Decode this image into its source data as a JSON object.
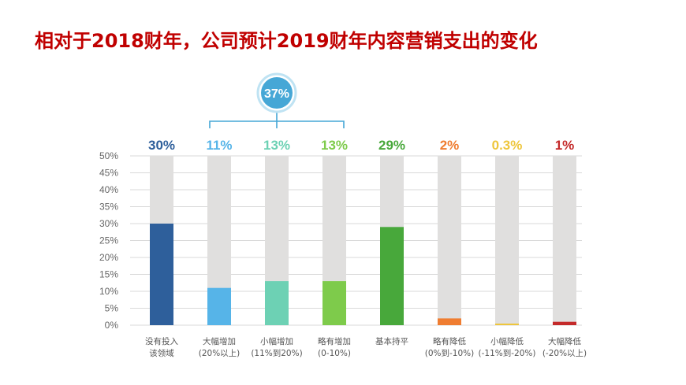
{
  "title": "相对于2018财年，公司预计2019财年内容营销支出的变化",
  "chart_data": {
    "type": "bar",
    "categories": [
      [
        "没有投入",
        "该领域"
      ],
      [
        "大幅增加",
        "(20%以上)"
      ],
      [
        "小幅增加",
        "(11%到20%)"
      ],
      [
        "略有增加",
        "(0-10%)"
      ],
      [
        "基本持平"
      ],
      [
        "略有降低",
        "(0%到-10%)"
      ],
      [
        "小幅降低",
        "(-11%到-20%)"
      ],
      [
        "大幅降低",
        "(-20%以上)"
      ]
    ],
    "values": [
      30,
      11,
      13,
      13,
      29,
      2,
      0.3,
      1
    ],
    "value_labels": [
      "30%",
      "11%",
      "13%",
      "13%",
      "29%",
      "2%",
      "0.3%",
      "1%"
    ],
    "colors": [
      "#2e5f9b",
      "#56b4e8",
      "#6dd1b4",
      "#7ecb4b",
      "#48a83b",
      "#ef7d31",
      "#eec63c",
      "#c42a2a"
    ],
    "track_color": "#e0dfde",
    "ylim": [
      0,
      50
    ],
    "yticks": [
      "0%",
      "5%",
      "10%",
      "15%",
      "20%",
      "25%",
      "30%",
      "35%",
      "40%",
      "45%",
      "50%"
    ],
    "group_annotation": {
      "label": "37%",
      "from_index": 1,
      "to_index": 3,
      "color": "#46a7d6"
    }
  }
}
